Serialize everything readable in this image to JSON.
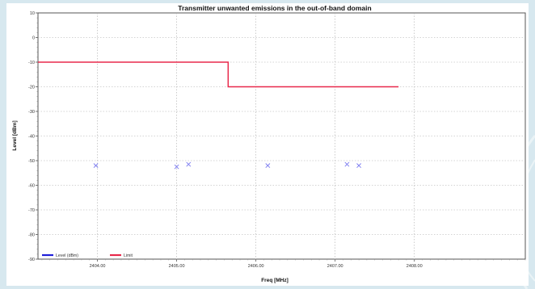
{
  "chart_data": {
    "type": "line",
    "title": "Transmitter unwanted emissions in the out-of-band domain",
    "xlabel": "Freq [MHz]",
    "ylabel": "Level [dBm]",
    "xlim": [
      2403.25,
      2409.4
    ],
    "ylim": [
      -90,
      10
    ],
    "x_ticks": [
      2404,
      2405,
      2406,
      2407,
      2408
    ],
    "x_tick_labels": [
      "2404.00",
      "2405.00",
      "2406.00",
      "2407.00",
      "2408.00"
    ],
    "y_ticks": [
      10,
      0,
      -10,
      -20,
      -30,
      -40,
      -50,
      -60,
      -70,
      -80,
      -90
    ],
    "y_tick_labels": [
      "10",
      "0",
      "-10",
      "-20",
      "-30",
      "-40",
      "-50",
      "-60",
      "-70",
      "-80",
      "-90"
    ],
    "grid": true,
    "legend_position": "bottom-left",
    "series": [
      {
        "name": "Level (dBm)",
        "kind": "scatter",
        "marker": "x",
        "color": "#7b7bf0",
        "legend_color": "#1f1fd8",
        "points": [
          {
            "x": 2403.98,
            "y": -52
          },
          {
            "x": 2405.0,
            "y": -52.5
          },
          {
            "x": 2405.15,
            "y": -51.5
          },
          {
            "x": 2406.15,
            "y": -52
          },
          {
            "x": 2407.15,
            "y": -51.5
          },
          {
            "x": 2407.3,
            "y": -52
          }
        ]
      },
      {
        "name": "Limit",
        "kind": "step",
        "color": "#e8294b",
        "points": [
          {
            "x": 2403.25,
            "y": -10
          },
          {
            "x": 2405.65,
            "y": -10
          },
          {
            "x": 2405.65,
            "y": -20
          },
          {
            "x": 2407.8,
            "y": -20
          }
        ]
      }
    ]
  }
}
